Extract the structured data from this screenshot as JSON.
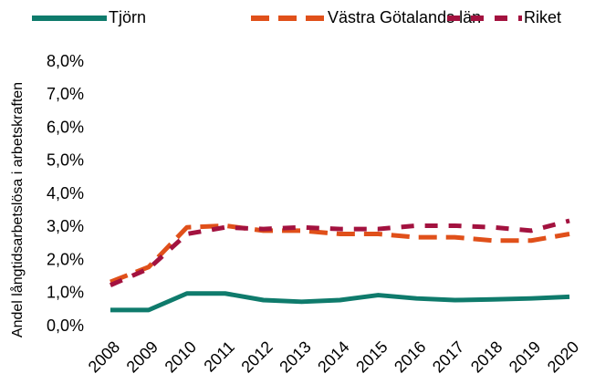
{
  "chart_data": {
    "type": "line",
    "y_label": "Andel långtidsarbetslösa i arbetskraften",
    "categories": [
      "2008",
      "2009",
      "2010",
      "2011",
      "2012",
      "2013",
      "2014",
      "2015",
      "2016",
      "2017",
      "2018",
      "2019",
      "2020"
    ],
    "series": [
      {
        "name": "Tjörn",
        "color": "#0f7b6c",
        "style": "solid",
        "values": [
          0.5,
          0.5,
          1.0,
          1.0,
          0.8,
          0.75,
          0.8,
          0.95,
          0.85,
          0.8,
          0.82,
          0.85,
          0.9
        ]
      },
      {
        "name": "Västra Götalands län",
        "color": "#e0501a",
        "style": "dashed",
        "values": [
          1.35,
          1.8,
          3.0,
          3.05,
          2.9,
          2.9,
          2.8,
          2.8,
          2.7,
          2.7,
          2.6,
          2.6,
          2.8
        ]
      },
      {
        "name": "Riket",
        "color": "#a3123f",
        "style": "dashed",
        "values": [
          1.25,
          1.75,
          2.8,
          3.0,
          2.95,
          3.0,
          2.95,
          2.95,
          3.05,
          3.05,
          3.0,
          2.9,
          3.2
        ]
      }
    ],
    "ylim": [
      0,
      8
    ],
    "yticks": [
      {
        "value": 0,
        "label": "0,0%"
      },
      {
        "value": 1,
        "label": "1,0%"
      },
      {
        "value": 2,
        "label": "2,0%"
      },
      {
        "value": 3,
        "label": "3,0%"
      },
      {
        "value": 4,
        "label": "4,0%"
      },
      {
        "value": 5,
        "label": "5,0%"
      },
      {
        "value": 6,
        "label": "6,0%"
      },
      {
        "value": 7,
        "label": "7,0%"
      },
      {
        "value": 8,
        "label": "8,0%"
      }
    ],
    "grid": false,
    "legend": "top"
  }
}
